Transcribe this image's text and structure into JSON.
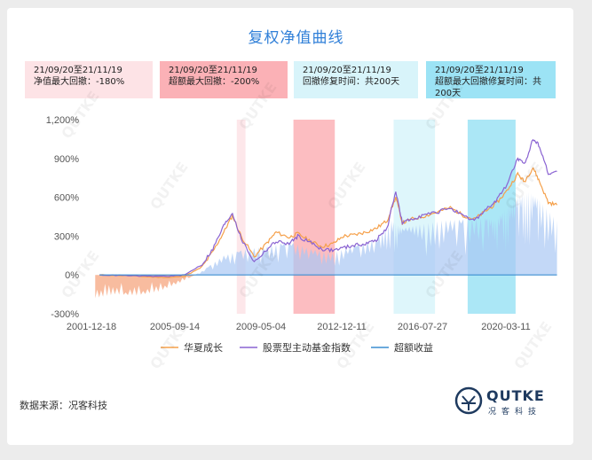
{
  "chart_data": {
    "type": "line",
    "title": "复权净值曲线",
    "x_ticks": [
      "2001-12-18",
      "2005-09-14",
      "2009-05-04",
      "2012-12-11",
      "2016-07-27",
      "2020-03-11"
    ],
    "ylim": [
      -300,
      1200
    ],
    "y_ticks": [
      "1,200%",
      "900%",
      "600%",
      "300%",
      "0%",
      "-300%"
    ],
    "y_tick_values": [
      1200,
      900,
      600,
      300,
      0,
      -300
    ],
    "x_range": [
      2001.1,
      2022.9
    ],
    "grid": false,
    "legend_position": "bottom",
    "series": [
      {
        "name": "华夏成长",
        "color": "#f5a04a",
        "points": [
          [
            2001.8,
            0
          ],
          [
            2003.0,
            -5
          ],
          [
            2004.0,
            -15
          ],
          [
            2005.0,
            -20
          ],
          [
            2005.7,
            -10
          ],
          [
            2006.5,
            60
          ],
          [
            2007.0,
            180
          ],
          [
            2007.5,
            330
          ],
          [
            2007.9,
            460
          ],
          [
            2008.3,
            300
          ],
          [
            2008.9,
            140
          ],
          [
            2009.5,
            250
          ],
          [
            2009.9,
            330
          ],
          [
            2010.5,
            290
          ],
          [
            2010.9,
            320
          ],
          [
            2011.5,
            260
          ],
          [
            2012.0,
            220
          ],
          [
            2012.5,
            240
          ],
          [
            2013.0,
            300
          ],
          [
            2013.5,
            310
          ],
          [
            2014.0,
            330
          ],
          [
            2014.5,
            360
          ],
          [
            2015.0,
            420
          ],
          [
            2015.4,
            600
          ],
          [
            2015.7,
            400
          ],
          [
            2016.1,
            430
          ],
          [
            2016.6,
            450
          ],
          [
            2017.2,
            480
          ],
          [
            2017.9,
            520
          ],
          [
            2018.5,
            460
          ],
          [
            2019.0,
            430
          ],
          [
            2019.5,
            490
          ],
          [
            2020.0,
            550
          ],
          [
            2020.5,
            650
          ],
          [
            2021.0,
            780
          ],
          [
            2021.3,
            720
          ],
          [
            2021.7,
            830
          ],
          [
            2022.0,
            720
          ],
          [
            2022.4,
            560
          ],
          [
            2022.8,
            540
          ]
        ]
      },
      {
        "name": "股票型主动基金指数",
        "color": "#8a63d2",
        "points": [
          [
            2001.8,
            0
          ],
          [
            2003.0,
            -5
          ],
          [
            2004.0,
            -10
          ],
          [
            2005.0,
            -10
          ],
          [
            2005.7,
            0
          ],
          [
            2006.5,
            80
          ],
          [
            2007.0,
            200
          ],
          [
            2007.5,
            380
          ],
          [
            2007.9,
            480
          ],
          [
            2008.3,
            280
          ],
          [
            2008.9,
            100
          ],
          [
            2009.5,
            200
          ],
          [
            2009.9,
            260
          ],
          [
            2010.5,
            240
          ],
          [
            2010.9,
            300
          ],
          [
            2011.5,
            250
          ],
          [
            2012.0,
            200
          ],
          [
            2012.5,
            190
          ],
          [
            2013.0,
            210
          ],
          [
            2013.5,
            230
          ],
          [
            2014.0,
            240
          ],
          [
            2014.5,
            270
          ],
          [
            2015.0,
            360
          ],
          [
            2015.4,
            650
          ],
          [
            2015.7,
            400
          ],
          [
            2016.1,
            430
          ],
          [
            2016.6,
            460
          ],
          [
            2017.2,
            480
          ],
          [
            2017.9,
            520
          ],
          [
            2018.5,
            450
          ],
          [
            2019.0,
            420
          ],
          [
            2019.5,
            500
          ],
          [
            2020.0,
            570
          ],
          [
            2020.5,
            700
          ],
          [
            2021.0,
            900
          ],
          [
            2021.3,
            850
          ],
          [
            2021.7,
            1050
          ],
          [
            2022.0,
            1000
          ],
          [
            2022.4,
            780
          ],
          [
            2022.8,
            800
          ]
        ]
      },
      {
        "name": "超额收益",
        "color": "#3b8ed0",
        "points": [
          [
            2001.8,
            0
          ],
          [
            2022.8,
            0
          ]
        ]
      }
    ],
    "excess_area": [
      [
        2001.6,
        -180
      ],
      [
        2002.5,
        -150
      ],
      [
        2003.5,
        -160
      ],
      [
        2004.5,
        -130
      ],
      [
        2005.5,
        -60
      ],
      [
        2006.5,
        30
      ],
      [
        2007.5,
        150
      ],
      [
        2008.5,
        200
      ],
      [
        2009.5,
        220
      ],
      [
        2010.5,
        260
      ],
      [
        2011.5,
        200
      ],
      [
        2012.5,
        170
      ],
      [
        2013.5,
        230
      ],
      [
        2014.5,
        280
      ],
      [
        2015.2,
        420
      ],
      [
        2015.7,
        360
      ],
      [
        2016.5,
        390
      ],
      [
        2017.5,
        420
      ],
      [
        2018.5,
        430
      ],
      [
        2019.5,
        440
      ],
      [
        2020.0,
        420
      ],
      [
        2020.5,
        520
      ],
      [
        2021.0,
        600
      ],
      [
        2021.5,
        640
      ],
      [
        2022.0,
        580
      ],
      [
        2022.8,
        420
      ]
    ],
    "highlight_regions": [
      {
        "from": 2008.1,
        "to": 2008.5,
        "color": "#fde3e6"
      },
      {
        "from": 2010.7,
        "to": 2012.6,
        "color": "#fbb1b6"
      },
      {
        "from": 2015.3,
        "to": 2017.2,
        "color": "#d8f4fa"
      },
      {
        "from": 2018.7,
        "to": 2020.9,
        "color": "#9ce3f5"
      }
    ]
  },
  "info_boxes": [
    {
      "line1": "21/09/20至21/11/19",
      "line2": "净值最大回撤：-180%"
    },
    {
      "line1": "21/09/20至21/11/19",
      "line2": "超额最大回撤：-200%"
    },
    {
      "line1": "21/09/20至21/11/19",
      "line2": "回撤修复时间：共200天"
    },
    {
      "line1": "21/09/20至21/11/19",
      "line2": "超额最大回撤修复时间：共200天"
    }
  ],
  "source": "数据来源：况客科技",
  "brand": {
    "name": "QUTKE",
    "sub": "况客科技"
  },
  "watermark": "QUTKE"
}
